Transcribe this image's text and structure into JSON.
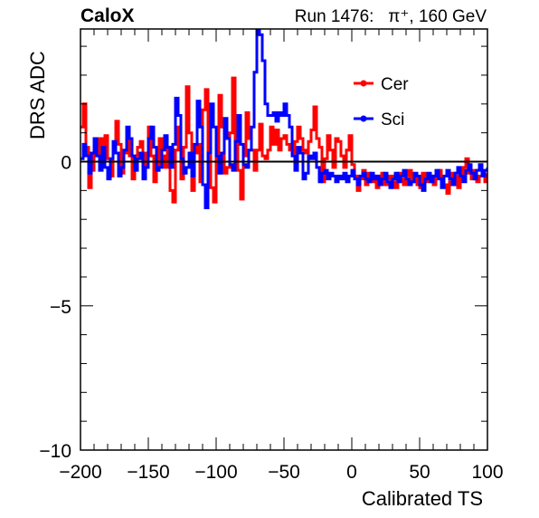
{
  "header": {
    "experiment": "CaloX",
    "run_label": "Run 1476:   π⁺, 160 GeV"
  },
  "chart_data": {
    "type": "line",
    "title": "",
    "xlabel": "Calibrated TS",
    "ylabel": "DRS ADC",
    "xlim": [
      -200,
      100
    ],
    "ylim": [
      -10,
      4.6
    ],
    "x_ticks": [
      -200,
      -150,
      -100,
      -50,
      0,
      50,
      100
    ],
    "x_tick_labels": [
      "−200",
      "−150",
      "−100",
      "−50",
      "0",
      "50",
      "100"
    ],
    "y_ticks": [
      -10,
      -5,
      0
    ],
    "y_tick_labels": [
      "−10",
      "−5",
      "0"
    ],
    "legend": {
      "position": "top-right"
    },
    "grid": false,
    "colors": {
      "Cer": "#ff0000",
      "Sci": "#0000ff",
      "zero_line": "#000000"
    },
    "series": [
      {
        "name": "Cer",
        "x": [
          -200,
          -198,
          -196,
          -194,
          -192,
          -190,
          -188,
          -186,
          -184,
          -182,
          -180,
          -178,
          -176,
          -174,
          -172,
          -170,
          -168,
          -166,
          -164,
          -162,
          -160,
          -158,
          -156,
          -154,
          -152,
          -150,
          -148,
          -146,
          -144,
          -142,
          -140,
          -138,
          -136,
          -134,
          -132,
          -130,
          -128,
          -126,
          -124,
          -122,
          -120,
          -118,
          -116,
          -114,
          -112,
          -110,
          -108,
          -106,
          -104,
          -102,
          -100,
          -98,
          -96,
          -94,
          -92,
          -90,
          -88,
          -86,
          -84,
          -82,
          -80,
          -78,
          -76,
          -74,
          -72,
          -70,
          -68,
          -66,
          -64,
          -62,
          -60,
          -58,
          -56,
          -54,
          -52,
          -50,
          -48,
          -46,
          -44,
          -42,
          -40,
          -38,
          -36,
          -34,
          -32,
          -30,
          -28,
          -26,
          -24,
          -22,
          -20,
          -18,
          -16,
          -14,
          -12,
          -10,
          -8,
          -6,
          -4,
          -2,
          0,
          2,
          4,
          6,
          8,
          10,
          12,
          14,
          16,
          18,
          20,
          22,
          24,
          26,
          28,
          30,
          32,
          34,
          36,
          38,
          40,
          42,
          44,
          46,
          48,
          50,
          52,
          54,
          56,
          58,
          60,
          62,
          64,
          66,
          68,
          70,
          72,
          74,
          76,
          78,
          80,
          82,
          84,
          86,
          88,
          90,
          92,
          94,
          96,
          98,
          100
        ],
        "values": [
          1.2,
          2.0,
          0.5,
          -0.9,
          -0.3,
          0.6,
          0.2,
          0.8,
          0.3,
          0.9,
          0.1,
          -0.5,
          0.4,
          1.4,
          0.6,
          -0.4,
          0.3,
          0.9,
          0.2,
          -0.6,
          0.2,
          0.5,
          0.7,
          -0.2,
          0.3,
          1.2,
          0.2,
          -0.7,
          -0.3,
          0.8,
          0.2,
          -0.2,
          0.5,
          -1.0,
          -1.4,
          0.4,
          1.2,
          -0.6,
          0.5,
          2.6,
          1.0,
          -1.0,
          0.3,
          0.6,
          -0.7,
          1.8,
          2.5,
          0.2,
          -0.9,
          -1.4,
          0.3,
          2.3,
          1.2,
          -0.4,
          -0.2,
          1.0,
          2.9,
          0.7,
          -0.3,
          -1.3,
          0.2,
          1.7,
          0.8,
          0.4,
          -0.3,
          0.4,
          1.3,
          0.2,
          0.1,
          0.4,
          1.2,
          0.6,
          1.1,
          0.4,
          0.8,
          0.9,
          0.6,
          0.4,
          0.3,
          0.7,
          1.2,
          0.8,
          0.4,
          0.3,
          0.7,
          1.1,
          1.9,
          0.8,
          0.5,
          -0.7,
          0.1,
          0.9,
          0.4,
          -0.2,
          0.8,
          0.7,
          0.2,
          -0.2,
          0.4,
          0.9,
          -0.1,
          -0.5,
          -1.0,
          -0.6,
          -0.3,
          -0.8,
          -0.4,
          -0.7,
          -0.5,
          -0.9,
          -0.6,
          -0.4,
          -0.8,
          -0.6,
          -0.5,
          -0.7,
          -0.9,
          -0.4,
          -0.6,
          -0.8,
          -0.5,
          -0.3,
          -0.7,
          -0.5,
          -0.8,
          -0.9,
          -0.4,
          -0.6,
          -0.7,
          -0.5,
          -0.8,
          -0.4,
          -0.3,
          -0.6,
          -0.8,
          -1.1,
          -0.7,
          -0.4,
          -0.5,
          -0.9,
          -0.5,
          -0.2,
          0.1,
          -0.4,
          -0.6,
          -0.3,
          -0.7,
          -0.5,
          -0.3,
          -0.7,
          -0.4
        ],
        "markers": []
      },
      {
        "name": "Sci",
        "x": [
          -200,
          -198,
          -196,
          -194,
          -192,
          -190,
          -188,
          -186,
          -184,
          -182,
          -180,
          -178,
          -176,
          -174,
          -172,
          -170,
          -168,
          -166,
          -164,
          -162,
          -160,
          -158,
          -156,
          -154,
          -152,
          -150,
          -148,
          -146,
          -144,
          -142,
          -140,
          -138,
          -136,
          -134,
          -132,
          -130,
          -128,
          -126,
          -124,
          -122,
          -120,
          -118,
          -116,
          -114,
          -112,
          -110,
          -108,
          -106,
          -104,
          -102,
          -100,
          -98,
          -96,
          -94,
          -92,
          -90,
          -88,
          -86,
          -84,
          -82,
          -80,
          -78,
          -76,
          -74,
          -72,
          -70,
          -68,
          -66,
          -64,
          -62,
          -60,
          -58,
          -56,
          -54,
          -52,
          -50,
          -48,
          -46,
          -44,
          -42,
          -40,
          -38,
          -36,
          -34,
          -32,
          -30,
          -28,
          -26,
          -24,
          -22,
          -20,
          -18,
          -16,
          -14,
          -12,
          -10,
          -8,
          -6,
          -4,
          -2,
          0,
          2,
          4,
          6,
          8,
          10,
          12,
          14,
          16,
          18,
          20,
          22,
          24,
          26,
          28,
          30,
          32,
          34,
          36,
          38,
          40,
          42,
          44,
          46,
          48,
          50,
          52,
          54,
          56,
          58,
          60,
          62,
          64,
          66,
          68,
          70,
          72,
          74,
          76,
          78,
          80,
          82,
          84,
          86,
          88,
          90,
          92,
          94,
          96,
          98,
          100
        ],
        "values": [
          0.1,
          0.6,
          0.2,
          -0.4,
          0.3,
          0.8,
          0.2,
          -0.3,
          0.5,
          -0.2,
          -0.6,
          0.1,
          0.7,
          0.3,
          -0.5,
          -0.2,
          0.4,
          1.2,
          0.8,
          0.2,
          -0.3,
          0.1,
          0.3,
          -0.6,
          -0.2,
          0.8,
          1.2,
          0.5,
          -0.3,
          -0.2,
          0.4,
          0.9,
          0.5,
          -0.2,
          0.6,
          2.2,
          1.6,
          0.1,
          -0.4,
          -0.2,
          0.3,
          -0.5,
          0.6,
          2.1,
          1.2,
          -0.8,
          -1.6,
          0.3,
          2.0,
          1.2,
          0.2,
          -0.4,
          0.3,
          1.5,
          0.8,
          -0.1,
          -0.3,
          0.7,
          1.6,
          0.6,
          -0.1,
          -0.2,
          0.4,
          1.2,
          3.1,
          4.6,
          4.4,
          3.5,
          2.0,
          1.6,
          1.6,
          1.7,
          1.4,
          1.7,
          1.6,
          2.0,
          1.6,
          1.2,
          0.2,
          -0.3,
          0.5,
          0.3,
          -0.6,
          -0.4,
          0.2,
          0.1,
          0.3,
          -0.2,
          -0.7,
          -0.4,
          -0.3,
          -0.6,
          -0.4,
          -0.5,
          -0.7,
          -0.5,
          -0.6,
          -0.4,
          -0.7,
          -0.5,
          -0.3,
          -0.6,
          -0.8,
          -0.5,
          -0.4,
          -0.6,
          -0.7,
          -0.4,
          -0.6,
          -0.5,
          -0.8,
          -0.6,
          -0.4,
          -0.7,
          -0.9,
          -0.6,
          -0.4,
          -0.7,
          -0.5,
          -0.3,
          -0.6,
          -0.8,
          -0.7,
          -0.4,
          -0.5,
          -0.8,
          -1.0,
          -0.6,
          -0.4,
          -0.7,
          -0.5,
          -0.3,
          -0.6,
          -0.9,
          -0.5,
          -0.3,
          -0.6,
          -0.8,
          -0.4,
          -0.2,
          -0.5,
          -0.7,
          -0.3,
          -0.1,
          -0.4,
          -0.6,
          -0.3,
          -0.1,
          -0.5,
          -0.3,
          -0.2
        ],
        "markers": []
      }
    ]
  }
}
